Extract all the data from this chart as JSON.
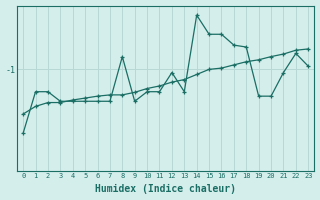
{
  "xlabel": "Humidex (Indice chaleur)",
  "background_color": "#d4eeec",
  "line_color": "#1a6e64",
  "grid_color": "#b8d8d5",
  "x": [
    0,
    1,
    2,
    3,
    4,
    5,
    6,
    7,
    8,
    9,
    10,
    11,
    12,
    13,
    14,
    15,
    16,
    17,
    18,
    19,
    20,
    21,
    22,
    23
  ],
  "y_jagged": [
    -2.0,
    -1.35,
    -1.35,
    -1.5,
    -1.5,
    -1.5,
    -1.5,
    -1.5,
    -0.8,
    -1.5,
    -1.35,
    -1.35,
    -1.05,
    -1.35,
    -0.15,
    -0.45,
    -0.45,
    -0.62,
    -0.65,
    -1.42,
    -1.42,
    -1.05,
    -0.75,
    -0.95
  ],
  "y_trend": [
    -1.7,
    -1.58,
    -1.52,
    -1.52,
    -1.48,
    -1.45,
    -1.42,
    -1.4,
    -1.4,
    -1.36,
    -1.3,
    -1.26,
    -1.2,
    -1.16,
    -1.08,
    -1.0,
    -0.98,
    -0.93,
    -0.88,
    -0.85,
    -0.8,
    -0.76,
    -0.7,
    -0.68
  ],
  "yticks": [
    -1
  ],
  "ylim": [
    -2.6,
    0.0
  ],
  "xlim": [
    -0.5,
    23.5
  ],
  "axis_fontsize": 7,
  "tick_fontsize": 6
}
